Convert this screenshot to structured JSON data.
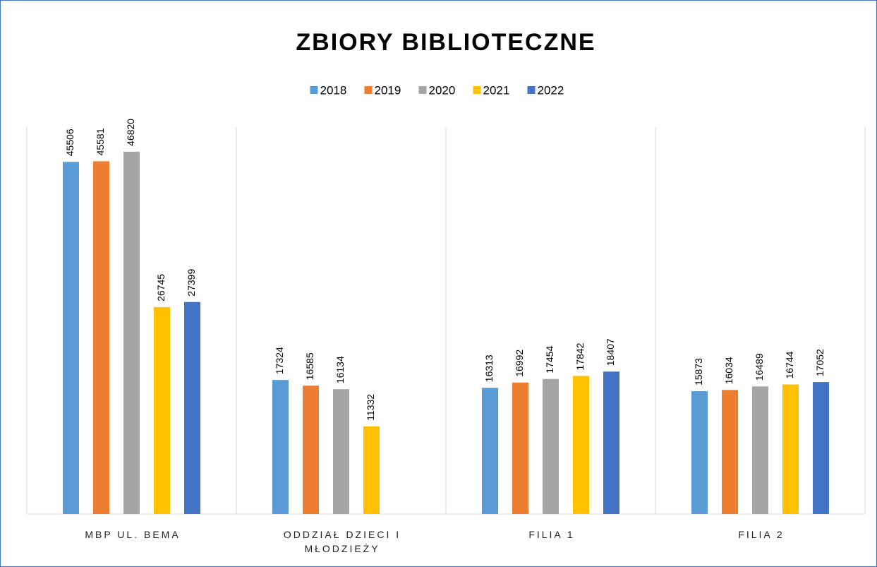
{
  "chart_data": {
    "type": "bar",
    "title": "ZBIORY BIBLIOTECZNE",
    "categories": [
      "MBP UL. BEMA",
      "ODDZIAŁ DZIECI I MŁODZIEŻY",
      "FILIA 1",
      "FILIA 2"
    ],
    "series": [
      {
        "name": "2018",
        "color": "#5b9bd5",
        "values": [
          45506,
          17324,
          16313,
          15873
        ]
      },
      {
        "name": "2019",
        "color": "#ed7d31",
        "values": [
          45581,
          16585,
          16992,
          16034
        ]
      },
      {
        "name": "2020",
        "color": "#a5a5a5",
        "values": [
          46820,
          16134,
          17454,
          16489
        ]
      },
      {
        "name": "2021",
        "color": "#ffc000",
        "values": [
          26745,
          11332,
          17842,
          16744
        ]
      },
      {
        "name": "2022",
        "color": "#4472c4",
        "values": [
          27399,
          null,
          18407,
          17052
        ]
      }
    ],
    "ylim": [
      0,
      50000
    ],
    "legend": "top"
  }
}
